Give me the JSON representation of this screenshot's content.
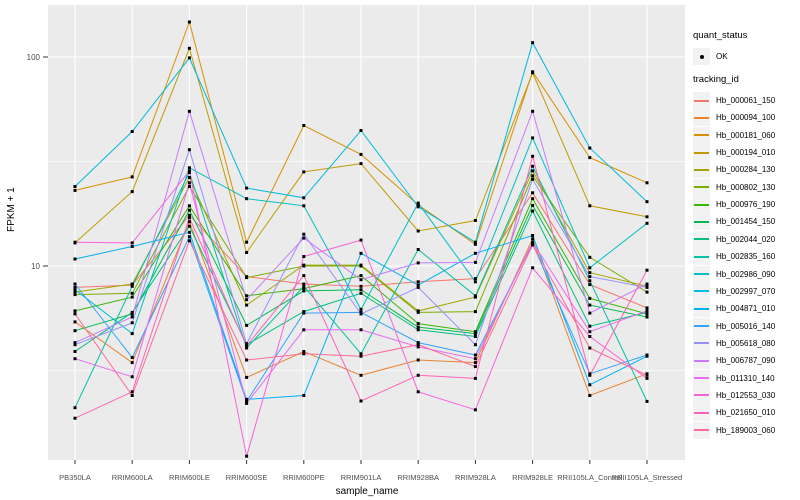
{
  "chart_data": {
    "type": "line",
    "title": "",
    "xlabel": "sample_name",
    "ylabel": "FPKM + 1",
    "y_scale": "log10",
    "y_tick_labels": [
      "100",
      "10"
    ],
    "y_tick_values": [
      100,
      10
    ],
    "y_minor_gridlines": [
      31.6,
      3.16
    ],
    "ylim": [
      1.1,
      190
    ],
    "grid": true,
    "panel_bg": "#EBEBEB",
    "grid_color": "#FFFFFF",
    "marker_color": "#000000",
    "categories": [
      "PB350LA",
      "RRIM600LA",
      "RRIM600LE",
      "RRIM600SE",
      "RRIM600PE",
      "RRIM901LA",
      "RRIM928BA",
      "RRIM928LA",
      "RRIM928LE",
      "RRII105LA_Control",
      "RRII105LA_Stressed"
    ],
    "legend": {
      "quant_status": {
        "title": "quant_status",
        "items": [
          {
            "label": "OK",
            "symbol": "point"
          }
        ]
      },
      "tracking_id": {
        "title": "tracking_id"
      }
    },
    "series": [
      {
        "name": "Hb_000061_150",
        "color": "#F8766D",
        "values": [
          7.9,
          8.1,
          17.5,
          8.9,
          8.2,
          8.0,
          8.4,
          8.7,
          22.4,
          8.15,
          6.3
        ]
      },
      {
        "name": "Hb_000094_100",
        "color": "#EA8331",
        "values": [
          5.4,
          3.45,
          16.3,
          2.93,
          3.9,
          3.0,
          3.55,
          3.45,
          13.5,
          2.4,
          3.05
        ]
      },
      {
        "name": "Hb_000181_060",
        "color": "#D89000",
        "values": [
          23,
          26.7,
          147,
          13,
          47,
          34.2,
          19.6,
          12.7,
          85,
          33,
          25
        ]
      },
      {
        "name": "Hb_000194_010",
        "color": "#C09B00",
        "values": [
          12.9,
          22.7,
          110,
          11.6,
          28.2,
          30.9,
          14.7,
          16.5,
          84,
          19.4,
          17.2
        ]
      },
      {
        "name": "Hb_000284_130",
        "color": "#A3A500",
        "values": [
          7.5,
          8.2,
          26.5,
          6.5,
          10.1,
          10.1,
          6.1,
          7.1,
          28.5,
          9.3,
          8.0
        ]
      },
      {
        "name": "Hb_000802_130",
        "color": "#7CAE00",
        "values": [
          7.3,
          7.4,
          24,
          8.8,
          10.0,
          10.0,
          6.0,
          6.05,
          27,
          11,
          7.5
        ]
      },
      {
        "name": "Hb_000976_190",
        "color": "#39B600",
        "values": [
          6.1,
          7.1,
          19.4,
          7.2,
          7.8,
          9.0,
          5.3,
          4.85,
          21,
          7.0,
          5.9
        ]
      },
      {
        "name": "Hb_001454_150",
        "color": "#00BB4E",
        "values": [
          4.9,
          5.9,
          18.5,
          5.2,
          7.6,
          7.7,
          5.1,
          4.75,
          19.5,
          6.5,
          5.7
        ]
      },
      {
        "name": "Hb_002044_020",
        "color": "#00BF7D",
        "values": [
          3.9,
          6.0,
          15.5,
          4.2,
          6.05,
          7.4,
          4.95,
          4.6,
          18.3,
          5.15,
          6.0
        ]
      },
      {
        "name": "Hb_002835_160",
        "color": "#00C1A3",
        "values": [
          2.1,
          8.0,
          28,
          4.05,
          8.0,
          3.8,
          12.0,
          7.2,
          30,
          8.5,
          2.25
        ]
      },
      {
        "name": "Hb_002986_090",
        "color": "#00BFC4",
        "values": [
          7.7,
          4.75,
          29.5,
          21,
          19.4,
          6.2,
          20,
          8.4,
          41,
          9.8,
          16.0
        ]
      },
      {
        "name": "Hb_002997_070",
        "color": "#00BAE0",
        "values": [
          24,
          44,
          99,
          23.6,
          21.2,
          44.5,
          19.2,
          13,
          117,
          36.7,
          20.3
        ]
      },
      {
        "name": "Hb_004871_010",
        "color": "#00B0F6",
        "values": [
          10.8,
          12.4,
          14.5,
          2.3,
          2.4,
          11.5,
          8.1,
          11.5,
          14,
          2.7,
          3.7
        ]
      },
      {
        "name": "Hb_005016_140",
        "color": "#35A2FF",
        "values": [
          8.2,
          3.65,
          13.8,
          2.25,
          5.95,
          6.0,
          4.3,
          3.75,
          12.8,
          3.05,
          3.75
        ]
      },
      {
        "name": "Hb_005618_080",
        "color": "#9590FF",
        "values": [
          4.2,
          5.35,
          36,
          4.25,
          14.2,
          5.9,
          7.9,
          4.2,
          26,
          8.9,
          7.9
        ]
      },
      {
        "name": "Hb_006787_090",
        "color": "#C77CFF",
        "values": [
          4.3,
          5.7,
          55,
          6.9,
          13.6,
          8.6,
          10.35,
          10.4,
          55,
          5.95,
          8.2
        ]
      },
      {
        "name": "Hb_011310_140",
        "color": "#E76BF3",
        "values": [
          3.6,
          2.95,
          25,
          2.2,
          4.95,
          4.95,
          4.1,
          3.6,
          13,
          4.85,
          6.1
        ]
      },
      {
        "name": "Hb_012553_030",
        "color": "#FA62DB",
        "values": [
          13,
          12.9,
          28.5,
          1.23,
          11.1,
          13.3,
          2.5,
          2.05,
          9.8,
          4.6,
          2.9
        ]
      },
      {
        "name": "Hb_021650_010",
        "color": "#FF62BC",
        "values": [
          1.87,
          2.5,
          17,
          4.15,
          9.0,
          2.26,
          3.0,
          2.9,
          33.5,
          3.0,
          9.55
        ]
      },
      {
        "name": "Hb_189003_060",
        "color": "#FF6A98",
        "values": [
          5.9,
          2.4,
          13.2,
          3.55,
          3.8,
          3.7,
          4.2,
          3.3,
          12.6,
          4.05,
          3.0
        ]
      }
    ]
  }
}
